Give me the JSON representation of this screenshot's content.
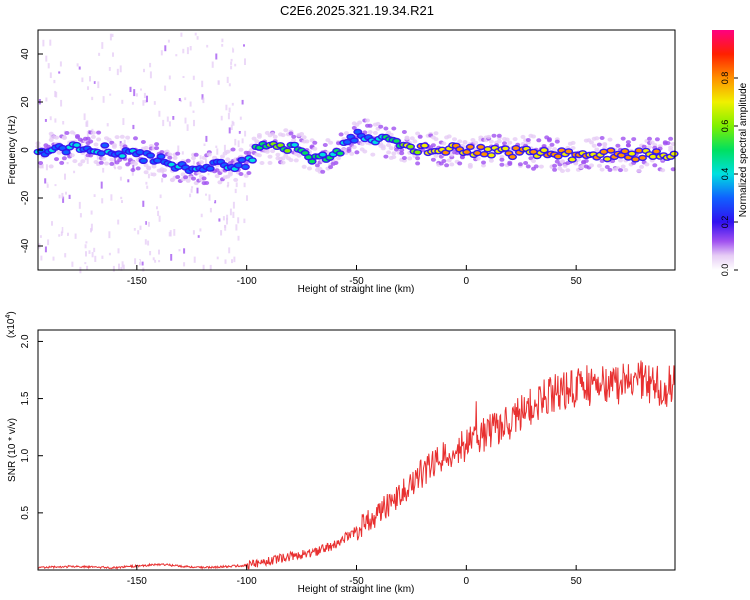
{
  "title": "C2E6.2025.321.19.34.R21",
  "colors": {
    "line": "#e83030",
    "axis": "#000000"
  },
  "chart_data": [
    {
      "type": "heatmap",
      "xlabel": "Height of straight line (km)",
      "ylabel": "Frequency (Hz)",
      "xlim": [
        -195,
        95
      ],
      "ylim": [
        -50,
        50
      ],
      "x_ticks": [
        -150,
        -100,
        -50,
        0,
        50
      ],
      "y_ticks": [
        -40,
        -20,
        0,
        20,
        40
      ],
      "colorbar": {
        "label": "Normalized spectral amplitude",
        "range": [
          0,
          1
        ],
        "ticks": [
          0.0,
          0.2,
          0.4,
          0.6,
          0.8
        ],
        "tick_labels": [
          "0.0",
          "0.2",
          "0.4",
          "0.6",
          "0.8"
        ]
      },
      "ridge": [
        {
          "x": -190,
          "f": 0,
          "a": 0.45
        },
        {
          "x": -175,
          "f": 1,
          "a": 0.5
        },
        {
          "x": -160,
          "f": 0,
          "a": 0.45
        },
        {
          "x": -145,
          "f": -3,
          "a": 0.4
        },
        {
          "x": -130,
          "f": -7,
          "a": 0.45
        },
        {
          "x": -115,
          "f": -7,
          "a": 0.4
        },
        {
          "x": -100,
          "f": -6,
          "a": 0.45
        },
        {
          "x": -95,
          "f": 1,
          "a": 0.7
        },
        {
          "x": -85,
          "f": 1,
          "a": 0.75
        },
        {
          "x": -78,
          "f": 2,
          "a": 0.6
        },
        {
          "x": -70,
          "f": -3,
          "a": 0.6
        },
        {
          "x": -60,
          "f": -2,
          "a": 0.55
        },
        {
          "x": -50,
          "f": 6,
          "a": 0.45
        },
        {
          "x": -42,
          "f": 5,
          "a": 0.5
        },
        {
          "x": -35,
          "f": 3,
          "a": 0.6
        },
        {
          "x": -25,
          "f": 1,
          "a": 0.8
        },
        {
          "x": -15,
          "f": 0,
          "a": 0.85
        },
        {
          "x": 0,
          "f": 0,
          "a": 0.9
        },
        {
          "x": 15,
          "f": -1,
          "a": 0.85
        },
        {
          "x": 30,
          "f": -1,
          "a": 0.85
        },
        {
          "x": 45,
          "f": -2,
          "a": 0.9
        },
        {
          "x": 60,
          "f": -2,
          "a": 0.9
        },
        {
          "x": 75,
          "f": -2,
          "a": 0.9
        },
        {
          "x": 90,
          "f": -2,
          "a": 0.85
        }
      ]
    },
    {
      "type": "line",
      "xlabel": "Height of straight line (km)",
      "ylabel": "SNR (10 * v/v)",
      "multiplier": "(x10",
      "multiplier_exp": "4",
      "multiplier_close": ")",
      "xlim": [
        -195,
        95
      ],
      "ylim": [
        0,
        2.1
      ],
      "x_ticks": [
        -150,
        -100,
        -50,
        0,
        50
      ],
      "y_ticks": [
        0.5,
        1.0,
        1.5,
        2.0
      ],
      "y_tick_labels": [
        "0.5",
        "1.0",
        "1.5",
        "2.0"
      ],
      "series": [
        {
          "name": "SNR",
          "x": [
            -195,
            -180,
            -160,
            -140,
            -120,
            -100,
            -90,
            -80,
            -70,
            -60,
            -50,
            -40,
            -30,
            -20,
            -10,
            0,
            10,
            20,
            30,
            40,
            50,
            60,
            70,
            80,
            90,
            95
          ],
          "values": [
            0.02,
            0.03,
            0.02,
            0.05,
            0.02,
            0.04,
            0.08,
            0.12,
            0.15,
            0.22,
            0.35,
            0.5,
            0.65,
            0.85,
            1.0,
            1.1,
            1.2,
            1.3,
            1.45,
            1.55,
            1.6,
            1.62,
            1.63,
            1.64,
            1.6,
            1.62
          ]
        }
      ]
    }
  ]
}
